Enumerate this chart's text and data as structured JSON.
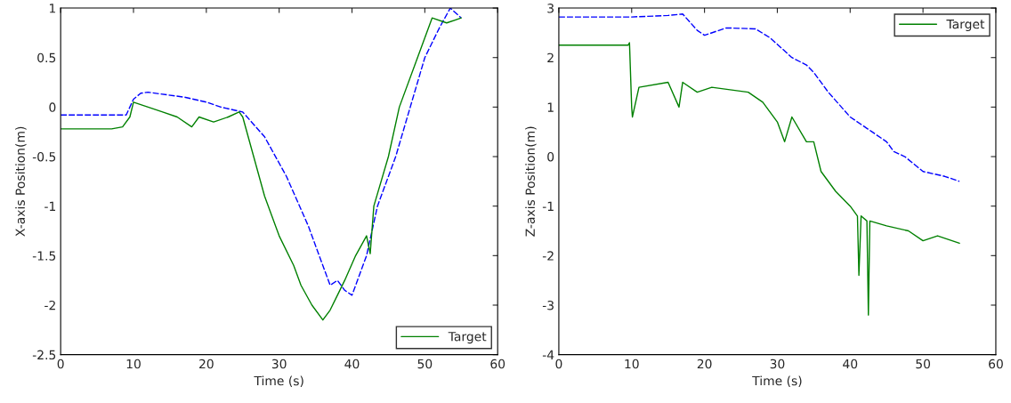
{
  "chart_data": [
    {
      "type": "line",
      "xlabel": "Time (s)",
      "ylabel": "X-axis Position(m)",
      "xlim": [
        0,
        60
      ],
      "ylim": [
        -2.5,
        1
      ],
      "xticks": [
        0,
        10,
        20,
        30,
        40,
        50,
        60
      ],
      "yticks": [
        -2.5,
        -2,
        -1.5,
        -1,
        -0.5,
        0,
        0.5,
        1
      ],
      "legend": "bottom right",
      "grid": false,
      "series": [
        {
          "color": "#0000ff",
          "line_style": "dashed",
          "x": [
            0,
            9,
            10,
            11,
            12,
            17,
            20,
            22,
            25,
            28,
            31,
            34,
            36,
            37,
            38,
            39,
            40,
            42,
            43.5,
            46,
            48,
            50,
            52,
            53.5,
            55
          ],
          "values": [
            -0.08,
            -0.08,
            0.08,
            0.14,
            0.15,
            0.1,
            0.05,
            0,
            -0.05,
            -0.3,
            -0.7,
            -1.2,
            -1.6,
            -1.8,
            -1.75,
            -1.85,
            -1.9,
            -1.5,
            -1,
            -0.5,
            0,
            0.5,
            0.8,
            1,
            0.9
          ]
        },
        {
          "name": "Target",
          "color": "#008000",
          "line_style": "solid",
          "x": [
            0,
            7,
            8.5,
            9.5,
            10,
            12,
            14,
            16,
            18,
            19,
            21,
            23,
            24.5,
            25,
            26.5,
            28,
            30,
            32,
            33,
            34.5,
            36,
            37,
            38,
            39,
            40.5,
            42,
            42.5,
            43,
            45,
            46.5,
            49,
            51,
            53,
            55
          ],
          "values": [
            -0.22,
            -0.22,
            -0.2,
            -0.1,
            0.05,
            0,
            -0.05,
            -0.1,
            -0.2,
            -0.1,
            -0.15,
            -0.1,
            -0.05,
            -0.1,
            -0.5,
            -0.9,
            -1.3,
            -1.6,
            -1.8,
            -2,
            -2.15,
            -2.05,
            -1.9,
            -1.75,
            -1.5,
            -1.3,
            -1.48,
            -1,
            -0.5,
            0,
            0.5,
            0.9,
            0.85,
            0.9
          ]
        }
      ]
    },
    {
      "type": "line",
      "xlabel": "Time (s)",
      "ylabel": "Z-axis Position(m)",
      "xlim": [
        0,
        60
      ],
      "ylim": [
        -4,
        3
      ],
      "xticks": [
        0,
        10,
        20,
        30,
        40,
        50,
        60
      ],
      "yticks": [
        -4,
        -3,
        -2,
        -1,
        0,
        1,
        2,
        3
      ],
      "legend": "top right",
      "grid": false,
      "series": [
        {
          "color": "#0000ff",
          "line_style": "dashed",
          "x": [
            0,
            10,
            15,
            17,
            19,
            20,
            23,
            27,
            29,
            32,
            34,
            35,
            37,
            40,
            43,
            45,
            46,
            47.5,
            50,
            53,
            55
          ],
          "values": [
            2.82,
            2.82,
            2.85,
            2.88,
            2.55,
            2.45,
            2.6,
            2.58,
            2.4,
            2,
            1.85,
            1.7,
            1.3,
            0.8,
            0.5,
            0.3,
            0.1,
            0,
            -0.3,
            -0.4,
            -0.5
          ]
        },
        {
          "name": "Target",
          "color": "#008000",
          "line_style": "solid",
          "x": [
            0,
            9.5,
            9.7,
            10,
            10.1,
            11,
            15,
            16.5,
            17,
            19,
            21,
            26,
            28,
            30,
            31,
            32,
            34,
            35,
            36,
            38,
            40,
            41,
            41.2,
            41.5,
            42.3,
            42.5,
            42.7,
            45,
            48,
            50,
            52,
            55
          ],
          "values": [
            2.25,
            2.25,
            2.3,
            1,
            0.8,
            1.4,
            1.5,
            1,
            1.5,
            1.3,
            1.4,
            1.3,
            1.1,
            0.7,
            0.3,
            0.8,
            0.3,
            0.3,
            -0.3,
            -0.7,
            -1,
            -1.2,
            -2.4,
            -1.2,
            -1.3,
            -3.2,
            -1.3,
            -1.4,
            -1.5,
            -1.7,
            -1.6,
            -1.75
          ]
        }
      ]
    }
  ]
}
